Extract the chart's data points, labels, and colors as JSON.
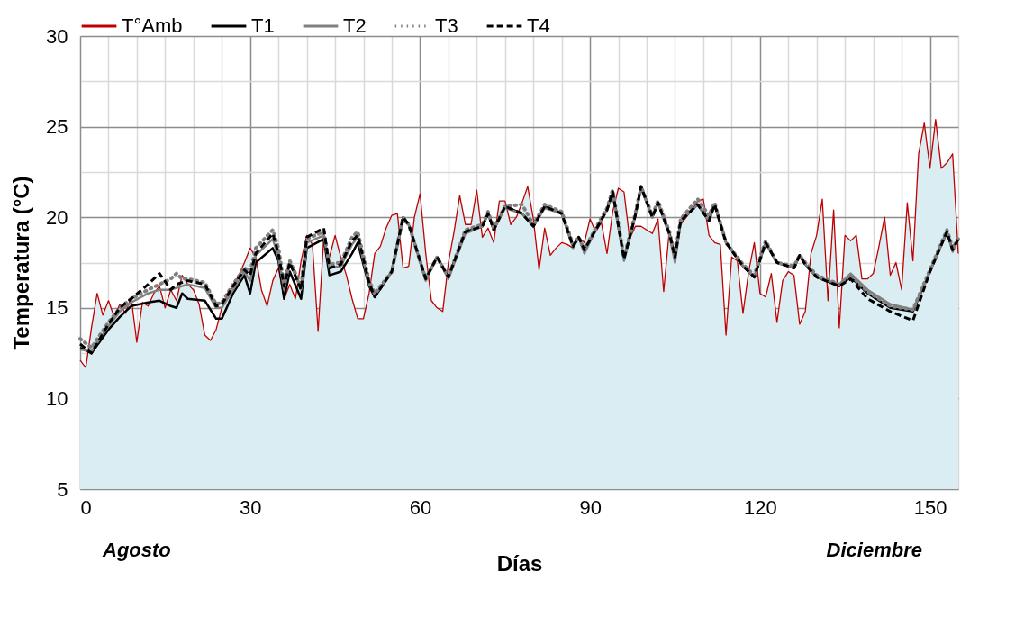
{
  "chart_data": {
    "type": "line",
    "xlabel": "Días",
    "ylabel": "Temperatura (°C)",
    "annotations": [
      "Agosto",
      "Diciembre"
    ],
    "xlim": [
      0,
      155
    ],
    "ylim": [
      5,
      30
    ],
    "xticks": [
      0,
      {
        "value": 5,
        "label": null
      },
      {
        "value": 10,
        "label": null
      },
      {
        "value": 15,
        "label": null
      },
      {
        "value": 20,
        "label": null
      },
      {
        "value": 25,
        "label": null
      },
      30,
      {
        "value": 35,
        "label": null
      },
      {
        "value": 40,
        "label": null
      },
      {
        "value": 45,
        "label": null
      },
      {
        "value": 50,
        "label": null
      },
      {
        "value": 55,
        "label": null
      },
      60,
      {
        "value": 65,
        "label": null
      },
      {
        "value": 70,
        "label": null
      },
      {
        "value": 75,
        "label": null
      },
      {
        "value": 80,
        "label": null
      },
      {
        "value": 85,
        "label": null
      },
      90,
      {
        "value": 95,
        "label": null
      },
      {
        "value": 100,
        "label": null
      },
      {
        "value": 105,
        "label": null
      },
      {
        "value": 110,
        "label": null
      },
      {
        "value": 115,
        "label": null
      },
      120,
      {
        "value": 125,
        "label": null
      },
      {
        "value": 130,
        "label": null
      },
      {
        "value": 135,
        "label": null
      },
      {
        "value": 140,
        "label": null
      },
      {
        "value": 145,
        "label": null
      },
      150,
      {
        "value": 155,
        "label": null
      }
    ],
    "yticks": [
      5,
      10,
      {
        "value": 12.5,
        "label": null
      },
      15,
      {
        "value": 17.5,
        "label": null
      },
      20,
      {
        "value": 22.5,
        "label": null
      },
      25,
      {
        "value": 27.5,
        "label": null
      },
      30
    ],
    "grid": true,
    "legend": "top",
    "series": [
      {
        "name": "T°Amb",
        "type": "area",
        "color": "#c00000",
        "line_style": "solid",
        "x": [
          0,
          1,
          2,
          3,
          4,
          5,
          6,
          7,
          8,
          9,
          10,
          11,
          12,
          13,
          14,
          15,
          16,
          17,
          18,
          19,
          20,
          21,
          22,
          23,
          24,
          25,
          26,
          27,
          28,
          29,
          30,
          31,
          32,
          33,
          34,
          35,
          36,
          37,
          38,
          39,
          40,
          41,
          42,
          43,
          44,
          45,
          46,
          47,
          48,
          49,
          50,
          51,
          52,
          53,
          54,
          55,
          56,
          57,
          58,
          59,
          60,
          61,
          62,
          63,
          64,
          65,
          66,
          67,
          68,
          69,
          70,
          71,
          72,
          73,
          74,
          75,
          76,
          77,
          78,
          79,
          80,
          81,
          82,
          83,
          84,
          85,
          86,
          87,
          88,
          89,
          90,
          91,
          92,
          93,
          94,
          95,
          96,
          97,
          98,
          99,
          100,
          101,
          102,
          103,
          104,
          105,
          106,
          107,
          108,
          109,
          110,
          111,
          112,
          113,
          114,
          115,
          116,
          117,
          118,
          119,
          120,
          121,
          122,
          123,
          124,
          125,
          126,
          127,
          128,
          129,
          130,
          131,
          132,
          133,
          134,
          135,
          136,
          137,
          138,
          139,
          140,
          141,
          142,
          143,
          144,
          145,
          146,
          147,
          148,
          149,
          150,
          151,
          152,
          153,
          154,
          155
        ],
        "values": [
          12.1,
          11.7,
          13.9,
          15.8,
          14.6,
          15.4,
          14.5,
          15.2,
          14.7,
          15.6,
          13.1,
          15.3,
          15.1,
          15.8,
          16.2,
          15.0,
          16.0,
          15.4,
          16.8,
          16.3,
          16.0,
          15.2,
          13.5,
          13.2,
          13.8,
          15.0,
          15.7,
          16.2,
          16.8,
          17.5,
          18.3,
          17.8,
          16.0,
          15.1,
          16.5,
          17.2,
          15.5,
          16.3,
          15.5,
          17.6,
          19.0,
          18.5,
          13.7,
          18.9,
          17.8,
          19.0,
          17.8,
          16.8,
          15.5,
          14.4,
          14.4,
          15.8,
          18.0,
          18.4,
          19.4,
          20.1,
          20.2,
          17.2,
          17.3,
          20.0,
          21.3,
          18.0,
          15.4,
          15.0,
          14.8,
          17.5,
          19.2,
          21.2,
          19.6,
          19.6,
          21.5,
          18.9,
          19.4,
          18.6,
          20.9,
          20.9,
          19.6,
          20.0,
          20.8,
          21.7,
          19.9,
          17.1,
          19.4,
          17.9,
          18.3,
          18.6,
          18.5,
          18.3,
          18.9,
          18.6,
          19.9,
          19.2,
          19.7,
          18.0,
          20.3,
          21.6,
          21.4,
          18.8,
          19.5,
          19.5,
          19.3,
          19.1,
          19.9,
          15.9,
          19.3,
          18.0,
          19.6,
          20.0,
          20.4,
          20.9,
          21.0,
          19.0,
          18.6,
          18.5,
          13.5,
          17.8,
          17.6,
          14.7,
          17.0,
          18.6,
          15.8,
          15.6,
          16.9,
          14.2,
          16.5,
          17.0,
          16.8,
          14.1,
          14.8,
          18.0,
          19.0,
          21.0,
          15.4,
          20.4,
          13.9,
          19.0,
          18.7,
          19.0,
          16.6,
          16.6,
          16.9,
          18.4,
          20.0,
          16.8,
          17.5,
          16.0,
          20.8,
          17.6,
          23.5,
          25.2,
          22.7,
          25.4,
          22.7,
          23.0,
          23.5,
          18.0
        ]
      },
      {
        "name": "T1",
        "color": "#000000",
        "line_style": "solid",
        "x": [
          0,
          2,
          5,
          7,
          9,
          12,
          14,
          16,
          17,
          18,
          19,
          22,
          24,
          25,
          27,
          29,
          30,
          31,
          34,
          35,
          36,
          37,
          39,
          40,
          43,
          44,
          46,
          48,
          49,
          51,
          52,
          55,
          57,
          58,
          61,
          63,
          65,
          68,
          71,
          72,
          73,
          75,
          78,
          80,
          82,
          85,
          87,
          88,
          89,
          91,
          93,
          94,
          96,
          98,
          99,
          101,
          102,
          104,
          105,
          106,
          109,
          111,
          112,
          114,
          117,
          119,
          121,
          123,
          126,
          127,
          128,
          130,
          134,
          136,
          139,
          143,
          147,
          150,
          153,
          154,
          155
        ],
        "values": [
          12.8,
          12.5,
          13.8,
          14.5,
          15.1,
          15.3,
          15.4,
          15.1,
          15.0,
          15.8,
          15.5,
          15.4,
          14.4,
          14.4,
          15.8,
          16.8,
          15.8,
          17.5,
          18.3,
          17.6,
          15.5,
          17.0,
          15.5,
          18.3,
          18.8,
          16.8,
          17.0,
          18.0,
          18.6,
          16.2,
          15.6,
          17.0,
          20.0,
          19.6,
          16.6,
          17.8,
          16.7,
          19.2,
          19.5,
          20.2,
          19.3,
          20.6,
          20.2,
          19.5,
          20.6,
          20.2,
          18.4,
          18.9,
          18.2,
          19.3,
          20.4,
          21.4,
          17.7,
          20.1,
          21.7,
          20.0,
          20.8,
          19.1,
          17.8,
          19.8,
          20.7,
          19.8,
          20.7,
          18.6,
          17.3,
          16.7,
          18.6,
          17.5,
          17.2,
          17.9,
          17.4,
          16.7,
          16.2,
          16.7,
          15.8,
          15.0,
          14.8,
          17.0,
          19.2,
          18.2,
          18.8
        ]
      },
      {
        "name": "T2",
        "color": "#808080",
        "line_style": "solid",
        "x": [
          0,
          2,
          5,
          7,
          9,
          12,
          14,
          16,
          17,
          18,
          19,
          22,
          24,
          25,
          27,
          29,
          30,
          31,
          34,
          35,
          36,
          37,
          39,
          40,
          43,
          44,
          46,
          48,
          49,
          51,
          52,
          55,
          57,
          58,
          61,
          63,
          65,
          68,
          71,
          72,
          73,
          75,
          78,
          80,
          82,
          85,
          87,
          88,
          89,
          91,
          93,
          94,
          96,
          98,
          99,
          101,
          102,
          104,
          105,
          106,
          109,
          111,
          112,
          114,
          117,
          119,
          121,
          123,
          126,
          127,
          128,
          130,
          134,
          136,
          139,
          143,
          147,
          150,
          153,
          154,
          155
        ],
        "values": [
          12.7,
          12.6,
          14.0,
          14.8,
          15.3,
          15.8,
          16.0,
          16.0,
          16.1,
          16.2,
          16.3,
          16.1,
          15.0,
          15.0,
          16.0,
          17.0,
          16.5,
          17.9,
          18.8,
          17.8,
          16.0,
          17.5,
          16.0,
          18.6,
          19.0,
          17.2,
          17.3,
          18.5,
          18.9,
          16.3,
          15.7,
          17.0,
          19.8,
          19.6,
          16.5,
          17.8,
          16.6,
          19.1,
          19.5,
          20.2,
          19.3,
          20.5,
          20.2,
          19.5,
          20.5,
          20.2,
          18.3,
          18.9,
          18.0,
          19.3,
          20.4,
          21.3,
          17.6,
          20.1,
          21.6,
          20.0,
          20.8,
          19.0,
          17.5,
          19.8,
          20.7,
          19.8,
          20.7,
          18.6,
          17.3,
          16.7,
          18.6,
          17.5,
          17.2,
          17.9,
          17.4,
          16.7,
          16.3,
          16.9,
          16.0,
          15.2,
          14.9,
          17.0,
          19.2,
          18.1,
          18.8
        ]
      },
      {
        "name": "T3",
        "color": "#808080",
        "line_style": "dotted",
        "x": [
          0,
          2,
          5,
          7,
          9,
          12,
          14,
          16,
          17,
          18,
          19,
          22,
          24,
          25,
          27,
          29,
          30,
          31,
          34,
          35,
          36,
          37,
          39,
          40,
          43,
          44,
          46,
          48,
          49,
          51,
          52,
          55,
          57,
          58,
          61,
          63,
          65,
          68,
          71,
          72,
          73,
          75,
          78,
          80,
          82,
          85,
          87,
          88,
          89,
          91,
          93,
          94,
          96,
          98,
          99,
          101,
          102,
          104,
          105,
          106,
          109,
          111,
          112,
          114,
          117,
          119,
          121,
          123,
          126,
          127,
          128,
          130,
          134,
          136,
          139,
          143,
          147,
          150,
          153,
          154,
          155
        ],
        "values": [
          13.3,
          12.8,
          14.2,
          15.0,
          15.5,
          16.0,
          16.3,
          16.6,
          16.9,
          16.6,
          16.6,
          16.4,
          15.2,
          15.3,
          16.3,
          17.2,
          17.0,
          18.3,
          19.3,
          18.3,
          16.3,
          17.6,
          16.2,
          18.8,
          19.2,
          17.4,
          17.5,
          18.9,
          19.2,
          16.5,
          15.8,
          17.0,
          20.0,
          19.6,
          16.6,
          17.8,
          16.7,
          19.3,
          19.6,
          20.3,
          19.4,
          20.6,
          20.7,
          19.6,
          20.7,
          20.3,
          18.5,
          18.9,
          18.2,
          19.4,
          20.5,
          21.5,
          17.8,
          20.2,
          21.7,
          20.1,
          20.9,
          19.2,
          17.9,
          19.9,
          21.0,
          20.1,
          20.8,
          18.6,
          17.4,
          16.8,
          18.7,
          17.5,
          17.3,
          17.9,
          17.5,
          16.8,
          16.3,
          16.8,
          15.9,
          15.1,
          14.9,
          17.1,
          19.3,
          18.3,
          18.8
        ]
      },
      {
        "name": "T4",
        "color": "#000000",
        "line_style": "dashed",
        "x": [
          0,
          2,
          5,
          7,
          9,
          12,
          14,
          16,
          17,
          18,
          19,
          22,
          24,
          25,
          27,
          29,
          30,
          31,
          34,
          35,
          36,
          37,
          39,
          40,
          43,
          44,
          46,
          48,
          49,
          51,
          52,
          55,
          57,
          58,
          61,
          63,
          65,
          68,
          71,
          72,
          73,
          75,
          78,
          80,
          82,
          85,
          87,
          88,
          89,
          91,
          93,
          94,
          96,
          98,
          99,
          101,
          102,
          104,
          105,
          106,
          109,
          111,
          112,
          114,
          117,
          119,
          121,
          123,
          126,
          127,
          128,
          130,
          134,
          136,
          139,
          143,
          147,
          150,
          153,
          154,
          155
        ],
        "values": [
          13.0,
          12.5,
          14.1,
          15.0,
          15.5,
          16.3,
          16.9,
          16.0,
          16.3,
          16.4,
          16.5,
          16.3,
          15.1,
          15.2,
          16.2,
          17.1,
          16.8,
          18.0,
          19.1,
          18.0,
          16.2,
          17.5,
          16.0,
          18.9,
          19.4,
          17.2,
          17.4,
          18.7,
          19.0,
          16.4,
          15.6,
          17.0,
          20.0,
          19.6,
          16.6,
          17.8,
          16.7,
          19.2,
          19.5,
          20.2,
          19.3,
          20.6,
          20.2,
          19.5,
          20.6,
          20.2,
          18.4,
          18.9,
          18.2,
          19.3,
          20.4,
          21.4,
          17.7,
          20.1,
          21.7,
          20.0,
          20.8,
          19.1,
          17.8,
          19.8,
          20.7,
          19.8,
          20.7,
          18.6,
          17.3,
          16.7,
          18.6,
          17.5,
          17.2,
          17.9,
          17.4,
          16.7,
          16.2,
          16.6,
          15.5,
          14.8,
          14.3,
          17.0,
          19.2,
          18.2,
          18.8
        ]
      }
    ]
  }
}
